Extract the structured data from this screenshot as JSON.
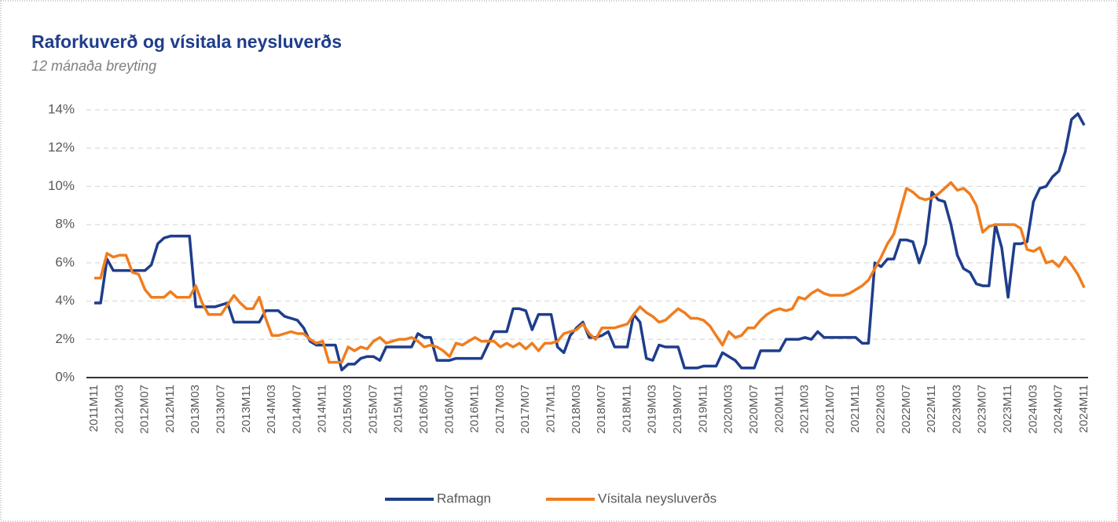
{
  "chart_data": {
    "type": "line",
    "title": "Raforkuverð og vísitala neysluverðs",
    "subtitle": "12 mánaða breyting",
    "categories": [
      "2011M11",
      null,
      null,
      null,
      "2012M03",
      null,
      null,
      null,
      "2012M07",
      null,
      null,
      null,
      "2012M11",
      null,
      null,
      null,
      "2013M03",
      null,
      null,
      null,
      "2013M07",
      null,
      null,
      null,
      "2013M11",
      null,
      null,
      null,
      "2014M03",
      null,
      null,
      null,
      "2014M07",
      null,
      null,
      null,
      "2014M11",
      null,
      null,
      null,
      "2015M03",
      null,
      null,
      null,
      "2015M07",
      null,
      null,
      null,
      "2015M11",
      null,
      null,
      null,
      "2016M03",
      null,
      null,
      null,
      "2016M07",
      null,
      null,
      null,
      "2016M11",
      null,
      null,
      null,
      "2017M03",
      null,
      null,
      null,
      "2017M07",
      null,
      null,
      null,
      "2017M11",
      null,
      null,
      null,
      "2018M03",
      null,
      null,
      null,
      "2018M07",
      null,
      null,
      null,
      "2018M11",
      null,
      null,
      null,
      "2019M03",
      null,
      null,
      null,
      "2019M07",
      null,
      null,
      null,
      "2019M11",
      null,
      null,
      null,
      "2020M03",
      null,
      null,
      null,
      "2020M07",
      null,
      null,
      null,
      "2020M11",
      null,
      null,
      null,
      "2021M03",
      null,
      null,
      null,
      "2021M07",
      null,
      null,
      null,
      "2021M11",
      null,
      null,
      null,
      "2022M03",
      null,
      null,
      null,
      "2022M07",
      null,
      null,
      null,
      "2022M11",
      null,
      null,
      null,
      "2023M03",
      null,
      null,
      null,
      "2023M07",
      null,
      null,
      null,
      "2023M11",
      null,
      null,
      null,
      "2024M03",
      null,
      null,
      null,
      "2024M07",
      null,
      null,
      null,
      "2024M11"
    ],
    "series": [
      {
        "name": "Rafmagn",
        "color": "#1f3d8c",
        "values": [
          3.9,
          3.9,
          6.2,
          5.6,
          5.6,
          5.6,
          5.6,
          5.6,
          5.6,
          5.9,
          7.0,
          7.3,
          7.4,
          7.4,
          7.4,
          7.4,
          3.7,
          3.7,
          3.7,
          3.7,
          3.8,
          3.9,
          2.9,
          2.9,
          2.9,
          2.9,
          2.9,
          3.5,
          3.5,
          3.5,
          3.2,
          3.1,
          3.0,
          2.6,
          1.9,
          1.7,
          1.7,
          1.7,
          1.7,
          0.4,
          0.7,
          0.7,
          1.0,
          1.1,
          1.1,
          0.9,
          1.6,
          1.6,
          1.6,
          1.6,
          1.6,
          2.3,
          2.1,
          2.1,
          0.9,
          0.9,
          0.9,
          1.0,
          1.0,
          1.0,
          1.0,
          1.0,
          1.7,
          2.4,
          2.4,
          2.4,
          3.6,
          3.6,
          3.5,
          2.5,
          3.3,
          3.3,
          3.3,
          1.6,
          1.3,
          2.2,
          2.6,
          2.9,
          2.1,
          2.1,
          2.2,
          2.4,
          1.6,
          1.6,
          1.6,
          3.3,
          2.9,
          1.0,
          0.9,
          1.7,
          1.6,
          1.6,
          1.6,
          0.5,
          0.5,
          0.5,
          0.6,
          0.6,
          0.6,
          1.3,
          1.1,
          0.9,
          0.5,
          0.5,
          0.5,
          1.4,
          1.4,
          1.4,
          1.4,
          2.0,
          2.0,
          2.0,
          2.1,
          2.0,
          2.4,
          2.1,
          2.1,
          2.1,
          2.1,
          2.1,
          2.1,
          1.8,
          1.8,
          6.0,
          5.8,
          6.2,
          6.2,
          7.2,
          7.2,
          7.1,
          6.0,
          7.0,
          9.7,
          9.3,
          9.2,
          8.0,
          6.4,
          5.7,
          5.5,
          4.9,
          4.8,
          4.8,
          8.0,
          6.8,
          4.2,
          7.0,
          7.0,
          7.1,
          9.2,
          9.9,
          10.0,
          10.5,
          10.8,
          11.8,
          13.5,
          13.8,
          13.2
        ]
      },
      {
        "name": "Vísitala neysluverðs",
        "color": "#f07d1e",
        "values": [
          5.2,
          5.2,
          6.5,
          6.3,
          6.4,
          6.4,
          5.5,
          5.4,
          4.6,
          4.2,
          4.2,
          4.2,
          4.5,
          4.2,
          4.2,
          4.2,
          4.8,
          3.9,
          3.3,
          3.3,
          3.3,
          3.8,
          4.3,
          3.9,
          3.6,
          3.6,
          4.2,
          3.1,
          2.2,
          2.2,
          2.3,
          2.4,
          2.3,
          2.3,
          2.0,
          1.8,
          1.9,
          0.8,
          0.8,
          0.8,
          1.6,
          1.4,
          1.6,
          1.5,
          1.9,
          2.1,
          1.8,
          1.9,
          2.0,
          2.0,
          2.1,
          1.9,
          1.6,
          1.7,
          1.6,
          1.4,
          1.1,
          1.8,
          1.7,
          1.9,
          2.1,
          1.9,
          1.9,
          1.9,
          1.6,
          1.8,
          1.6,
          1.8,
          1.5,
          1.8,
          1.4,
          1.8,
          1.8,
          1.9,
          2.3,
          2.4,
          2.5,
          2.8,
          2.3,
          2.0,
          2.6,
          2.6,
          2.6,
          2.7,
          2.8,
          3.3,
          3.7,
          3.4,
          3.2,
          2.9,
          3.0,
          3.3,
          3.6,
          3.4,
          3.1,
          3.1,
          3.0,
          2.7,
          2.2,
          1.7,
          2.4,
          2.1,
          2.2,
          2.6,
          2.6,
          3.0,
          3.3,
          3.5,
          3.6,
          3.5,
          3.6,
          4.2,
          4.1,
          4.4,
          4.6,
          4.4,
          4.3,
          4.3,
          4.3,
          4.4,
          4.6,
          4.8,
          5.1,
          5.7,
          6.3,
          7.0,
          7.5,
          8.7,
          9.9,
          9.7,
          9.4,
          9.3,
          9.4,
          9.6,
          9.9,
          10.2,
          9.8,
          9.9,
          9.6,
          9.0,
          7.6,
          7.9,
          8.0,
          8.0,
          8.0,
          8.0,
          7.8,
          6.7,
          6.6,
          6.8,
          6.0,
          6.1,
          5.8,
          6.3,
          5.9,
          5.4,
          4.7
        ]
      }
    ],
    "ylim": [
      0,
      14
    ],
    "yticks": [
      {
        "value": 0,
        "label": "0%"
      },
      {
        "value": 2,
        "label": "2%"
      },
      {
        "value": 4,
        "label": "4%"
      },
      {
        "value": 6,
        "label": "6%"
      },
      {
        "value": 8,
        "label": "8%"
      },
      {
        "value": 10,
        "label": "10%"
      },
      {
        "value": 12,
        "label": "12%"
      },
      {
        "value": 14,
        "label": "14%"
      }
    ],
    "grid": true,
    "legend": "bottom"
  }
}
